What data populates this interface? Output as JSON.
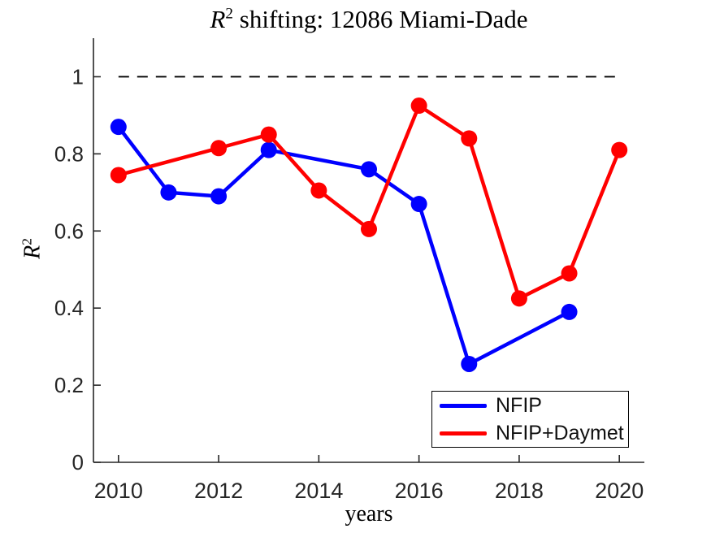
{
  "figure": {
    "title": {
      "var": "R",
      "sup": "2",
      "rest": " shifting: 12086 Miami-Dade"
    },
    "xlabel": "years",
    "ylabel": {
      "var": "R",
      "sup": "2"
    }
  },
  "chart_data": {
    "type": "line",
    "title": "R^2 shifting: 12086 Miami-Dade",
    "xlabel": "years",
    "ylabel": "R^2",
    "xlim": [
      2009.5,
      2020.5
    ],
    "ylim": [
      0,
      1.1
    ],
    "xticks": [
      2010,
      2012,
      2014,
      2016,
      2018,
      2020
    ],
    "xtick_labels": [
      "2010",
      "2012",
      "2014",
      "2016",
      "2018",
      "2020"
    ],
    "yticks": [
      0,
      0.2,
      0.4,
      0.6,
      0.8,
      1
    ],
    "ytick_labels": [
      "0",
      "0.2",
      "0.4",
      "0.6",
      "0.8",
      "1"
    ],
    "grid": false,
    "legend_position": "bottom-right-inside",
    "reference_line": {
      "y": 1.0,
      "style": "dashed",
      "color": "#000000",
      "x_start": 2010,
      "x_end": 2020
    },
    "series": [
      {
        "name": "NFIP",
        "color": "#0000FF",
        "x": [
          2010,
          2011,
          2012,
          2013,
          2015,
          2016,
          2017,
          2019
        ],
        "y": [
          0.87,
          0.7,
          0.69,
          0.81,
          0.76,
          0.67,
          0.255,
          0.39
        ]
      },
      {
        "name": "NFIP+Daymet",
        "color": "#FF0000",
        "x": [
          2010,
          2012,
          2013,
          2014,
          2015,
          2016,
          2017,
          2018,
          2019,
          2020
        ],
        "y": [
          0.745,
          0.815,
          0.85,
          0.705,
          0.605,
          0.925,
          0.84,
          0.425,
          0.49,
          0.81
        ]
      }
    ]
  },
  "style": {
    "axis_color": "#262626",
    "tick_label_color": "#262626",
    "background": "#FFFFFF",
    "line_width": 4.5,
    "marker_radius": 10
  }
}
